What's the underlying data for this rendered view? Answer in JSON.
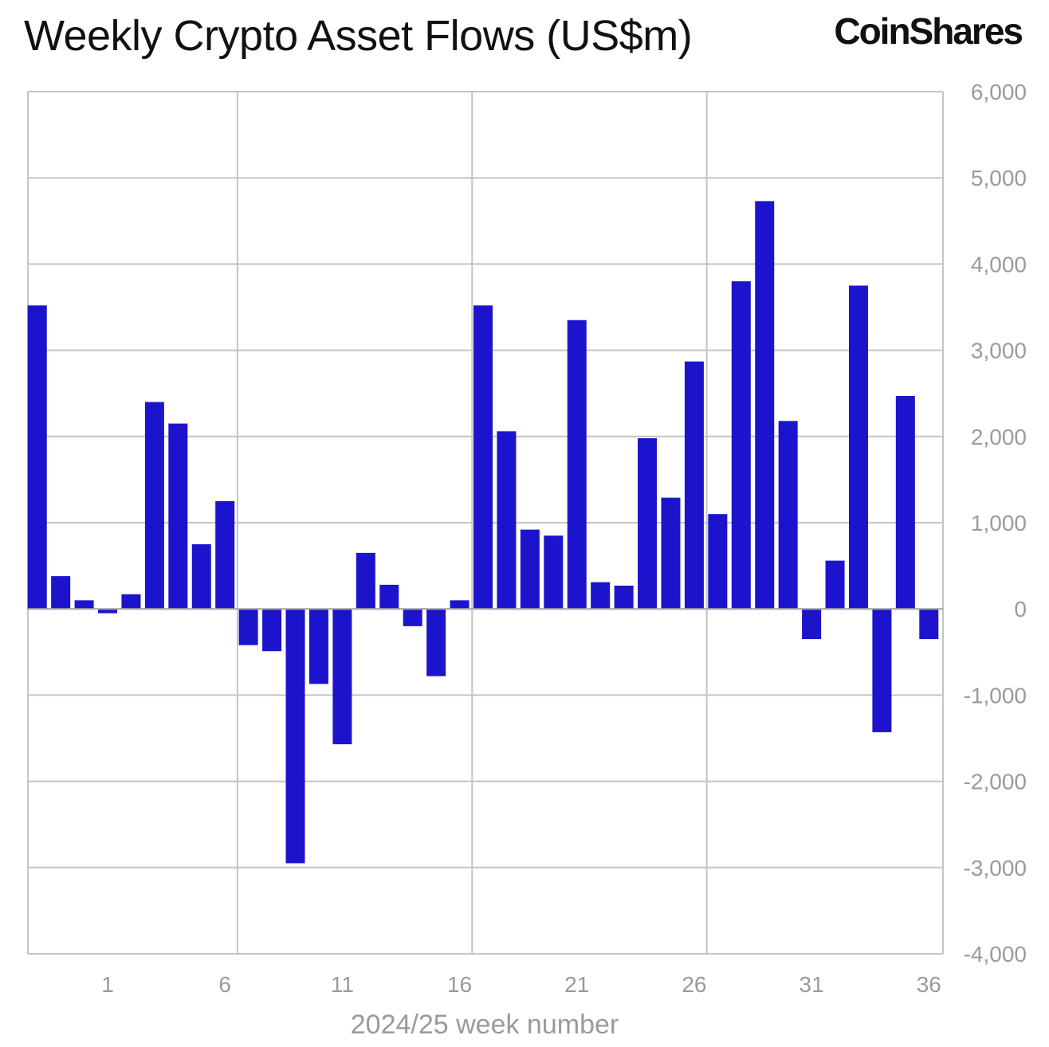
{
  "chart_data": {
    "type": "bar",
    "title": "Weekly Crypto Asset Flows (US$m)",
    "logo": "CoinShares",
    "xlabel": "2024/25 week number",
    "ylabel": "",
    "ylim": [
      -4000,
      6000
    ],
    "yticks": [
      6000,
      5000,
      4000,
      3000,
      2000,
      1000,
      0,
      -1000,
      -2000,
      -3000,
      -4000
    ],
    "ytick_labels": [
      "6,000",
      "5,000",
      "4,000",
      "3,000",
      "2,000",
      "1,000",
      "0",
      "-1,000",
      "-2,000",
      "-3,000",
      "-4,000"
    ],
    "y_axis_position": "right",
    "grid": true,
    "bar_color": "#1c14cc",
    "categories": [
      "",
      "",
      "",
      "1",
      "2",
      "3",
      "4",
      "5",
      "6",
      "7",
      "8",
      "9",
      "10",
      "11",
      "12",
      "13",
      "14",
      "15",
      "16",
      "17",
      "18",
      "19",
      "20",
      "21",
      "22",
      "23",
      "24",
      "25",
      "26",
      "27",
      "28",
      "29",
      "30",
      "31",
      "32",
      "33",
      "34",
      "35",
      "36"
    ],
    "xtick_labels": [
      "1",
      "6",
      "11",
      "16",
      "21",
      "26",
      "31",
      "36"
    ],
    "values": [
      3520,
      380,
      100,
      -50,
      170,
      2400,
      2150,
      750,
      1250,
      -420,
      -490,
      -2950,
      -870,
      -1570,
      650,
      280,
      -200,
      -780,
      100,
      3520,
      2060,
      920,
      850,
      3350,
      310,
      270,
      1980,
      1290,
      2870,
      1100,
      3800,
      4730,
      2180,
      -350,
      560,
      3750,
      -1430,
      2470,
      -350
    ]
  }
}
